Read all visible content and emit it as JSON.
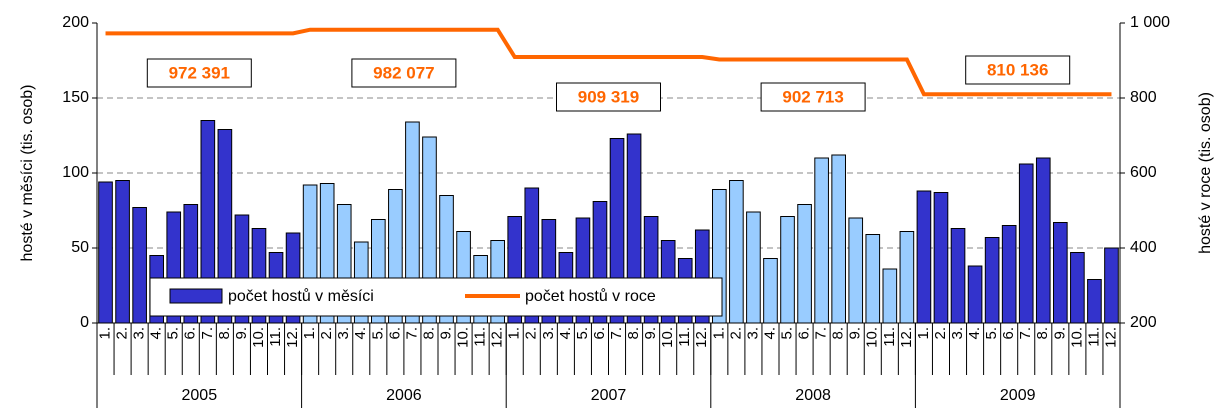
{
  "chart_data": {
    "type": "bar-line",
    "y_label": "hosté v měsíci (tis. osob)",
    "y2_label": "hosté v roce (tis. osob)",
    "categories": [
      "1.",
      "2.",
      "3.",
      "4.",
      "5.",
      "6.",
      "7.",
      "8.",
      "9.",
      "10.",
      "11.",
      "12.",
      "1.",
      "2.",
      "3.",
      "4.",
      "5.",
      "6.",
      "7.",
      "8.",
      "9.",
      "10.",
      "11.",
      "12.",
      "1.",
      "2.",
      "3.",
      "4.",
      "5.",
      "6.",
      "7.",
      "8.",
      "9.",
      "10.",
      "11.",
      "12.",
      "1.",
      "2.",
      "3.",
      "4.",
      "5.",
      "6.",
      "7.",
      "8.",
      "9.",
      "10.",
      "11.",
      "12.",
      "1.",
      "2.",
      "3.",
      "4.",
      "5.",
      "6.",
      "7.",
      "8.",
      "9.",
      "10.",
      "11.",
      "12."
    ],
    "groups": [
      "2005",
      "2006",
      "2007",
      "2008",
      "2009"
    ],
    "group_colors": [
      "#3333cc",
      "#99ccff",
      "#3333cc",
      "#99ccff",
      "#3333cc"
    ],
    "series": [
      {
        "name": "počet hostů v měsíci",
        "color": "#3333cc",
        "values": [
          94,
          95,
          77,
          45,
          74,
          79,
          135,
          129,
          72,
          63,
          47,
          60,
          92,
          93,
          79,
          54,
          69,
          89,
          134,
          124,
          85,
          61,
          45,
          55,
          71,
          90,
          69,
          47,
          70,
          81,
          123,
          126,
          71,
          55,
          43,
          62,
          89,
          95,
          74,
          43,
          71,
          79,
          110,
          112,
          70,
          59,
          36,
          61,
          88,
          87,
          63,
          38,
          57,
          65,
          106,
          110,
          67,
          47,
          29,
          50
        ]
      },
      {
        "name": "počet hostů v roce",
        "color": "#ff6600",
        "axis": "y2",
        "values": [
          972.391,
          972.391,
          972.391,
          972.391,
          972.391,
          972.391,
          972.391,
          972.391,
          972.391,
          972.391,
          972.391,
          972.391,
          982.077,
          982.077,
          982.077,
          982.077,
          982.077,
          982.077,
          982.077,
          982.077,
          982.077,
          982.077,
          982.077,
          982.077,
          909.319,
          909.319,
          909.319,
          909.319,
          909.319,
          909.319,
          909.319,
          909.319,
          909.319,
          909.319,
          909.319,
          909.319,
          902.713,
          902.713,
          902.713,
          902.713,
          902.713,
          902.713,
          902.713,
          902.713,
          902.713,
          902.713,
          902.713,
          902.713,
          810.136,
          810.136,
          810.136,
          810.136,
          810.136,
          810.136,
          810.136,
          810.136,
          810.136,
          810.136,
          810.136,
          810.136
        ]
      }
    ],
    "annotations": [
      "972 391",
      "982 077",
      "909 319",
      "902 713",
      "810 136"
    ],
    "ylim": [
      0,
      200
    ],
    "yticks": [
      0,
      50,
      100,
      150,
      200
    ],
    "y2lim": [
      200,
      1000
    ],
    "y2ticks": [
      200,
      400,
      600,
      800,
      {
        "value": 1000,
        "label": "1 000"
      }
    ],
    "grid": true
  }
}
